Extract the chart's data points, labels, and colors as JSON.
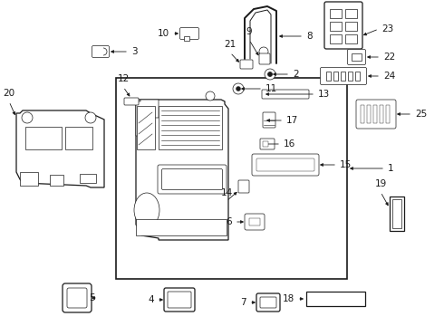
{
  "bg_color": "#ffffff",
  "fig_width": 4.9,
  "fig_height": 3.6,
  "dpi": 100,
  "lc": "#1a1a1a",
  "lw_main": 0.9,
  "lw_thin": 0.5,
  "fs": 7.5
}
